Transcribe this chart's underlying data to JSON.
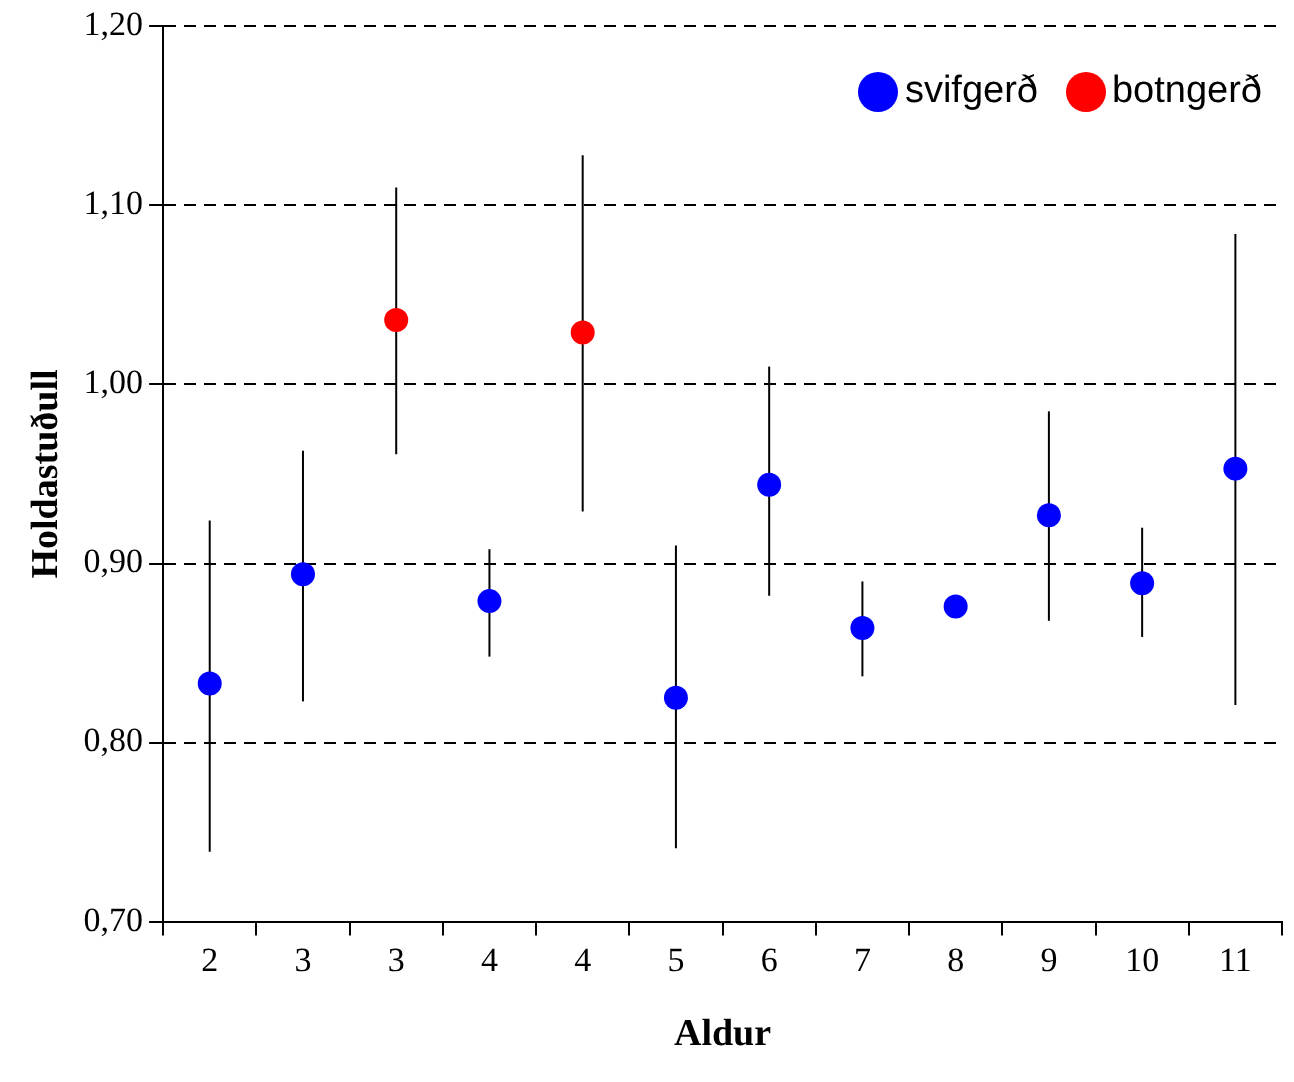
{
  "chart_data": {
    "type": "scatter",
    "xlabel": "Aldur",
    "ylabel": "Holdastuðull",
    "categories": [
      "2",
      "3",
      "3",
      "4",
      "4",
      "5",
      "6",
      "7",
      "8",
      "9",
      "10",
      "11"
    ],
    "series": [
      {
        "name": "svifgerð",
        "color": "#0000ff",
        "values": [
          0.833,
          0.894,
          null,
          0.879,
          null,
          0.825,
          0.944,
          0.864,
          0.876,
          0.927,
          0.889,
          0.953
        ],
        "errors": [
          [
            0.739,
            0.924
          ],
          [
            0.823,
            0.963
          ],
          null,
          [
            0.848,
            0.908
          ],
          null,
          [
            0.741,
            0.91
          ],
          [
            0.882,
            1.01
          ],
          [
            0.837,
            0.89
          ],
          null,
          [
            0.868,
            0.985
          ],
          [
            0.859,
            0.92
          ],
          [
            0.821,
            1.084
          ]
        ]
      },
      {
        "name": "botngerð",
        "color": "#ff0000",
        "values": [
          null,
          null,
          1.036,
          null,
          1.029,
          null,
          null,
          null,
          null,
          null,
          null,
          null
        ],
        "errors": [
          null,
          null,
          [
            0.961,
            1.11
          ],
          null,
          [
            0.929,
            1.128
          ],
          null,
          null,
          null,
          null,
          null,
          null,
          null
        ]
      }
    ],
    "ylim": [
      0.7,
      1.2
    ],
    "yticks": [
      {
        "value": 0.7,
        "label": "0,70"
      },
      {
        "value": 0.8,
        "label": "0,80"
      },
      {
        "value": 0.9,
        "label": "0,90"
      },
      {
        "value": 1.0,
        "label": "1,00"
      },
      {
        "value": 1.1,
        "label": "1,10"
      },
      {
        "value": 1.2,
        "label": "1,20"
      }
    ],
    "grid": "y",
    "line_style": "dashed",
    "marker": "circle",
    "legend": "top right"
  }
}
